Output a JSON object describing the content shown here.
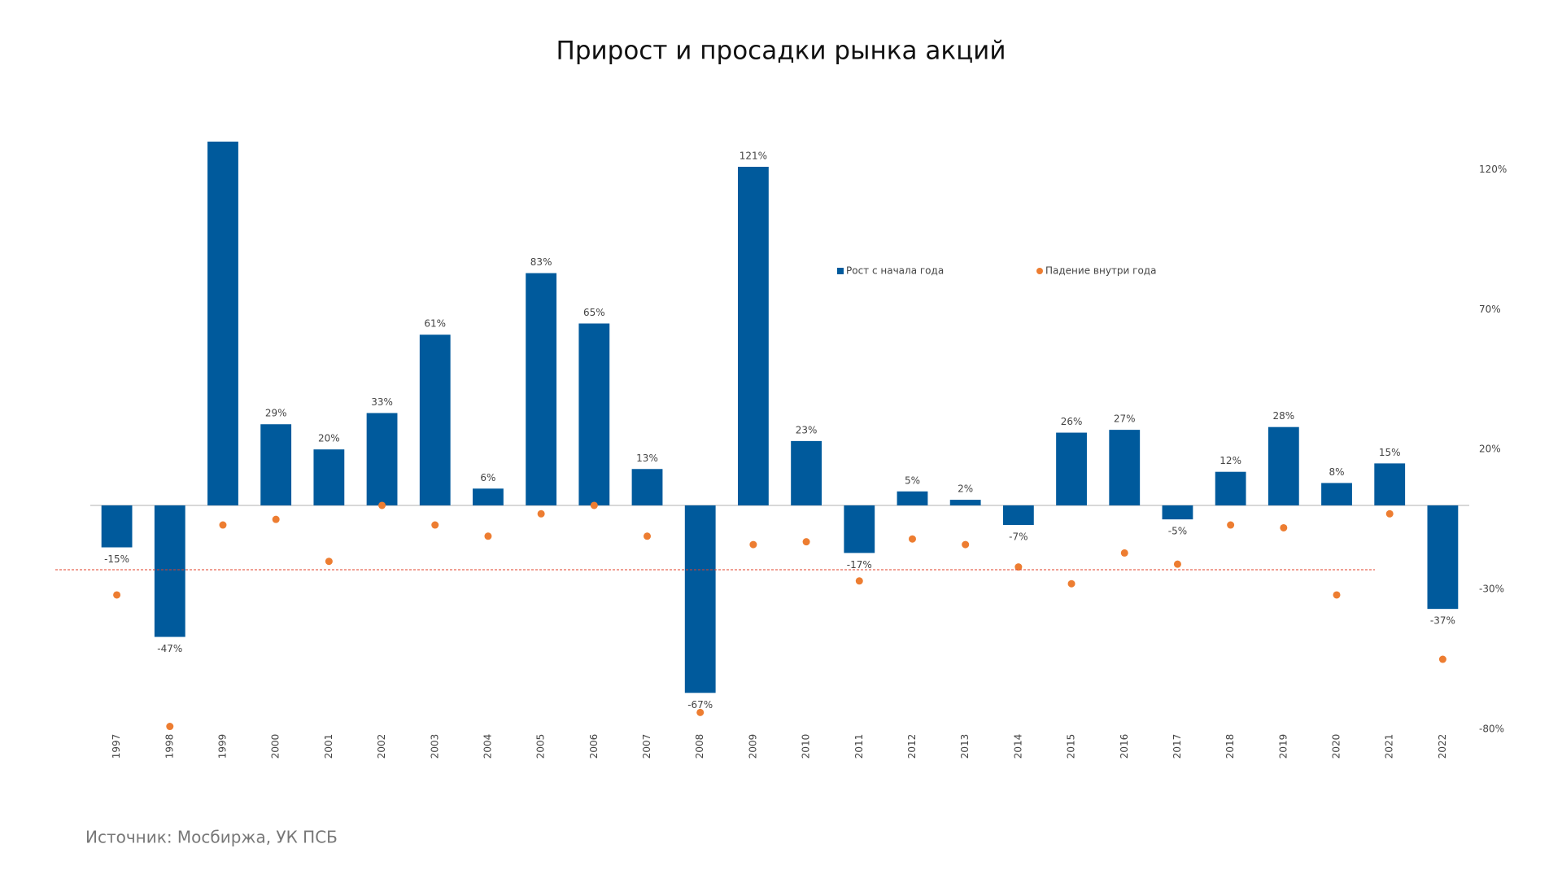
{
  "chart_data": {
    "type": "bar",
    "title": "Прирост и просадки рынка акций",
    "source": "Источник: Мосбиржа, УК ПСБ",
    "categories": [
      "1997",
      "1998",
      "1999",
      "2000",
      "2001",
      "2002",
      "2003",
      "2004",
      "2005",
      "2006",
      "2007",
      "2008",
      "2009",
      "2010",
      "2011",
      "2012",
      "2013",
      "2014",
      "2015",
      "2016",
      "2017",
      "2018",
      "2019",
      "2020",
      "2021",
      "2022"
    ],
    "series": [
      {
        "name": "Рост с начала года",
        "color": "#005a9c",
        "kind": "bar",
        "values": [
          -15,
          -47,
          130,
          29,
          20,
          33,
          61,
          6,
          83,
          65,
          13,
          -67,
          121,
          23,
          -17,
          5,
          2,
          -7,
          26,
          27,
          -5,
          12,
          28,
          8,
          15,
          -37
        ],
        "value_labels": [
          "-15%",
          "-47%",
          null,
          "29%",
          "20%",
          "33%",
          "61%",
          "6%",
          "83%",
          "65%",
          "13%",
          "-67%",
          "121%",
          "23%",
          "-17%",
          "5%",
          "2%",
          "-7%",
          "26%",
          "27%",
          "-5%",
          "12%",
          "28%",
          "8%",
          "15%",
          "-37%"
        ]
      },
      {
        "name": "Падение внутри года",
        "color": "#ed7d31",
        "kind": "dot",
        "values": [
          -32,
          -79,
          -7,
          -5,
          -20,
          0,
          -7,
          -11,
          -3,
          0,
          -11,
          -74,
          -14,
          -13,
          -27,
          -12,
          -14,
          -22,
          -28,
          -17,
          -21,
          -7,
          -8,
          -32,
          -3,
          -55
        ]
      }
    ],
    "reference_line": {
      "value": -23,
      "color": "#e0402a"
    },
    "ylim": [
      -80,
      130
    ],
    "yticks": [
      {
        "value": -80,
        "label": "-80%"
      },
      {
        "value": -30,
        "label": "-30%"
      },
      {
        "value": 20,
        "label": "20%"
      },
      {
        "value": 70,
        "label": "70%"
      },
      {
        "value": 120,
        "label": "120%"
      }
    ],
    "legend_position": "top"
  }
}
